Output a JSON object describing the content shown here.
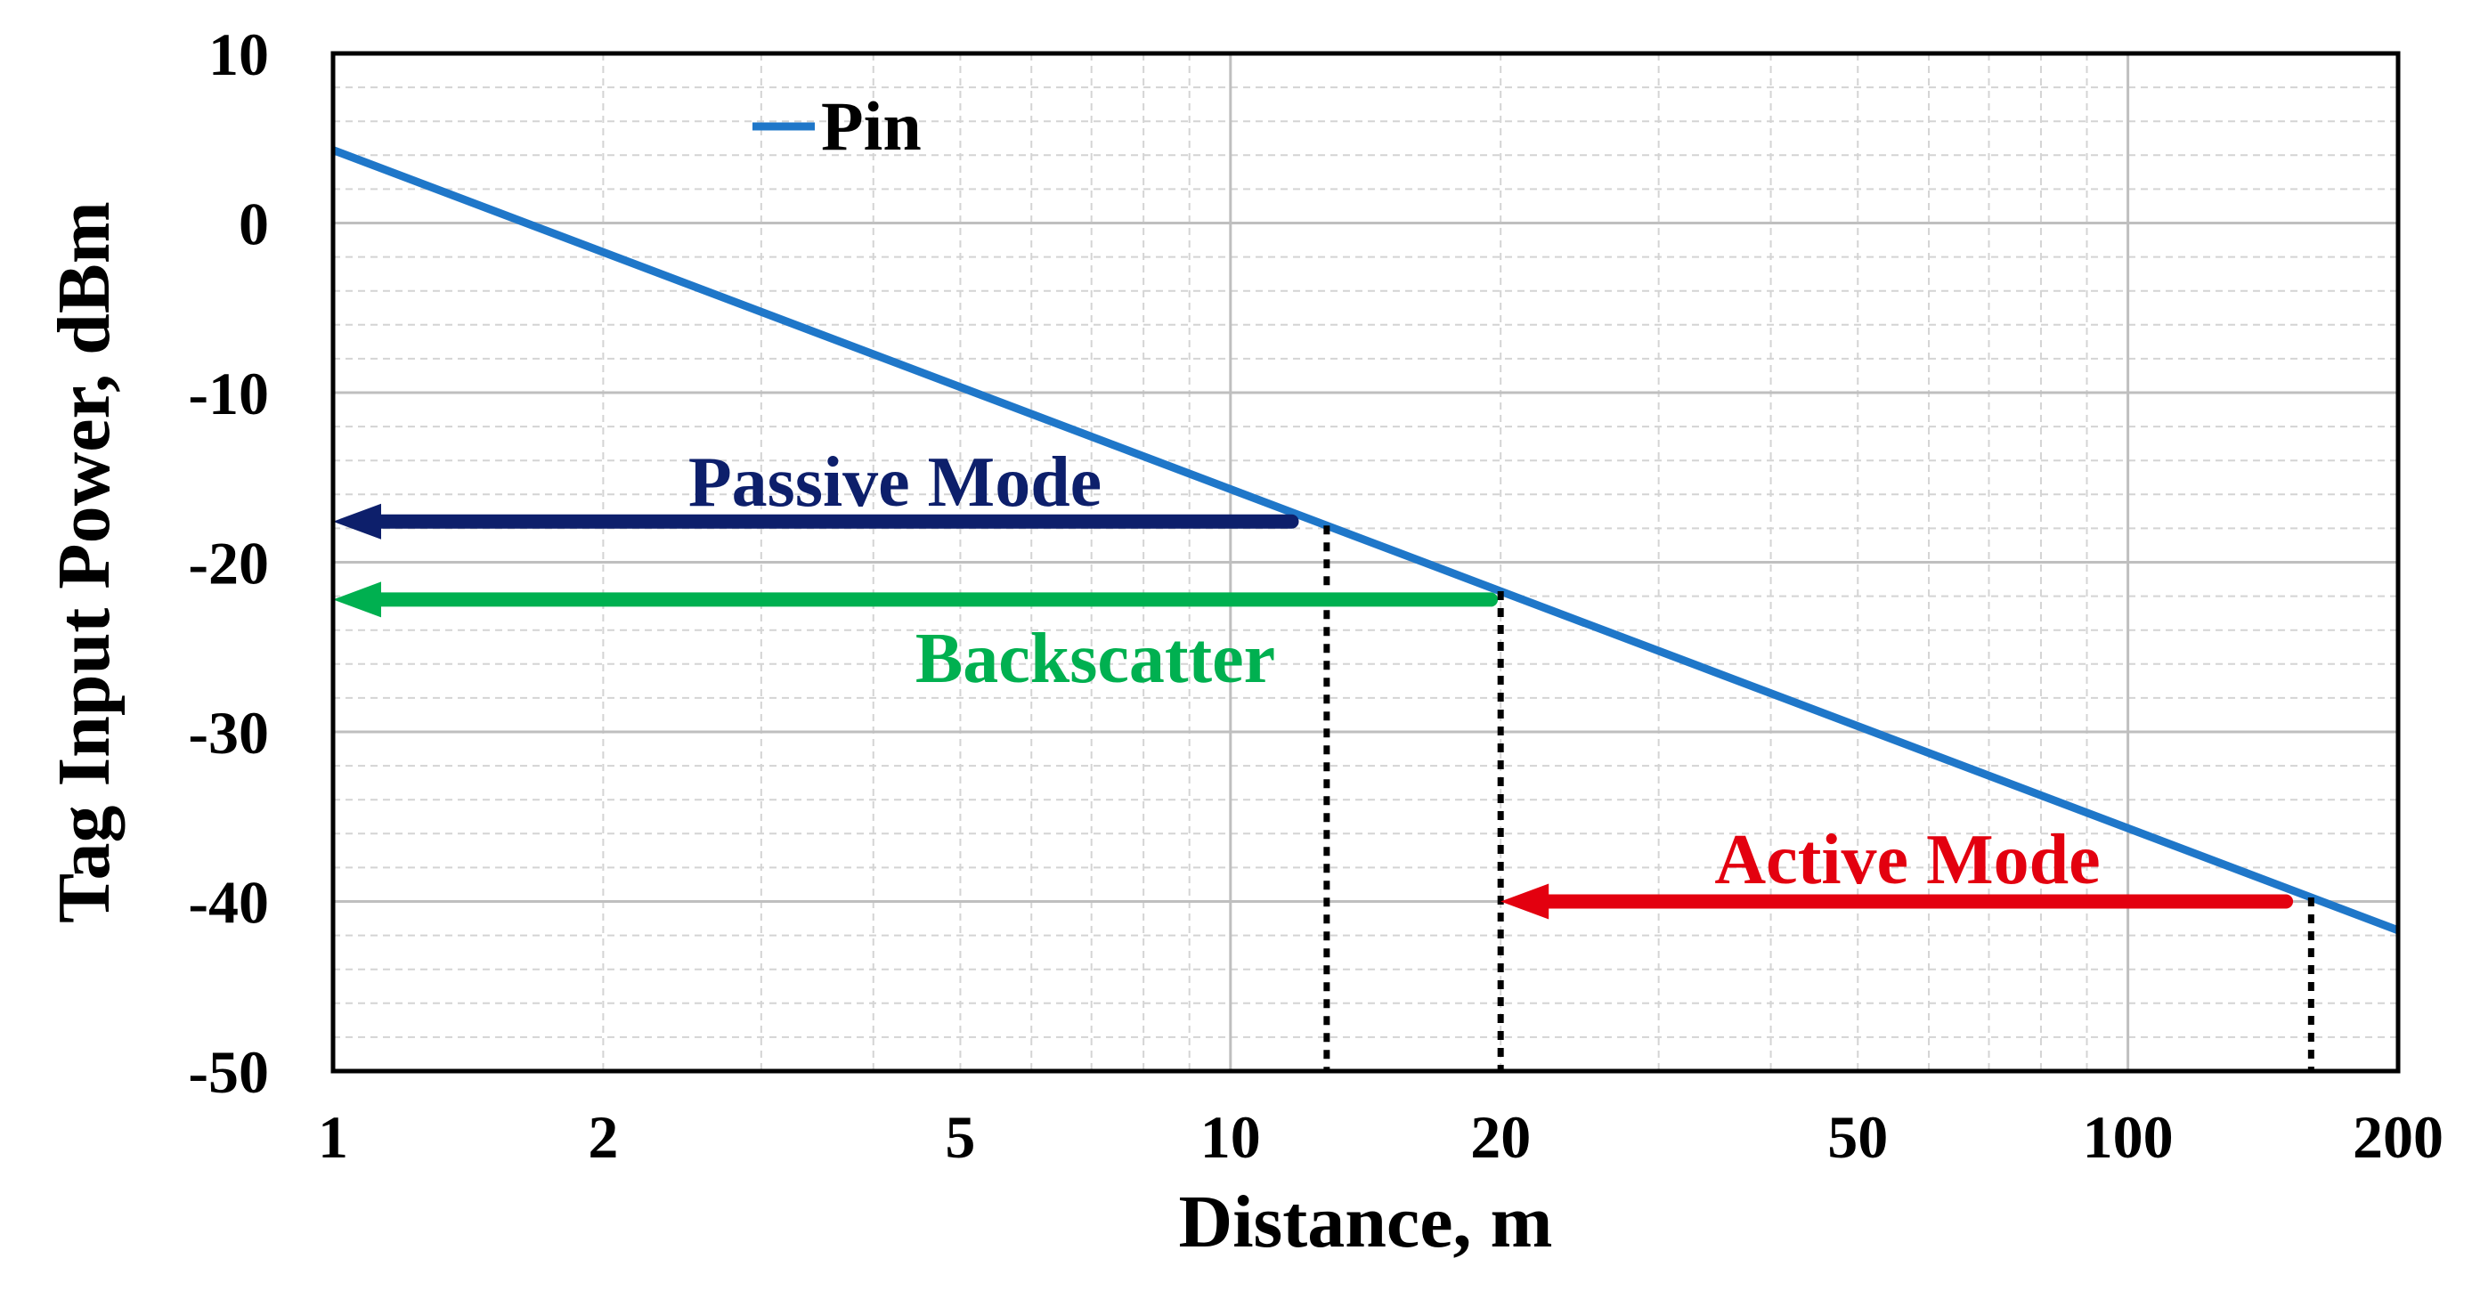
{
  "chart_data": {
    "type": "line",
    "xscale": "log",
    "xlim": [
      1,
      200
    ],
    "ylim": [
      -50,
      10
    ],
    "xticks": [
      1,
      2,
      5,
      10,
      20,
      50,
      100,
      200
    ],
    "xtick_labels": [
      "1",
      "2",
      "5",
      "10",
      "20",
      "50",
      "100",
      "200"
    ],
    "yticks": [
      10,
      0,
      -10,
      -20,
      -30,
      -40,
      -50
    ],
    "ytick_labels": [
      "10",
      "0",
      "-10",
      "-20",
      "-30",
      "-40",
      "-50"
    ],
    "xlabel": "Distance, m",
    "ylabel": "Tag Input Power, dBm",
    "grid": true,
    "legend_position": "top-left",
    "series": [
      {
        "name": "Pin",
        "color": "#1f77c9",
        "x": [
          1,
          200
        ],
        "y": [
          4.3,
          -41.7
        ]
      }
    ],
    "annotations": [
      {
        "label": "Passive Mode",
        "color": "#0d1f6b",
        "arrow_from": [
          11.7,
          -17.6
        ],
        "arrow_to": [
          1,
          -17.6
        ],
        "drop_line_x": 12.8
      },
      {
        "label": "Backscatter",
        "color": "#00b050",
        "arrow_from": [
          19.5,
          -22.2
        ],
        "arrow_to": [
          1,
          -22.2
        ],
        "drop_line_x": 20
      },
      {
        "label": "Active Mode",
        "color": "#e3000f",
        "arrow_from": [
          150,
          -40
        ],
        "arrow_to": [
          20,
          -40
        ],
        "drop_line_x": 160
      }
    ]
  }
}
